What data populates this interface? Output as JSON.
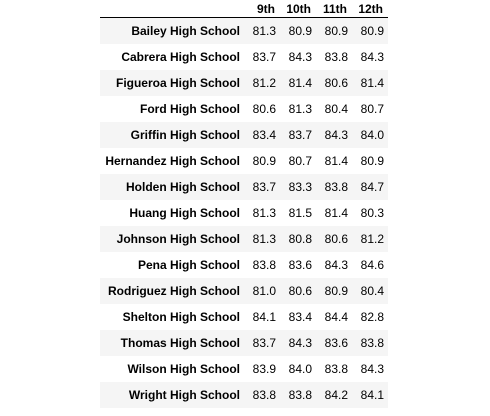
{
  "table": {
    "index_header": "",
    "columns": [
      "9th",
      "10th",
      "11th",
      "12th"
    ],
    "rows": [
      {
        "school": "Bailey High School",
        "values": [
          "81.3",
          "80.9",
          "80.9",
          "80.9"
        ]
      },
      {
        "school": "Cabrera High School",
        "values": [
          "83.7",
          "84.3",
          "83.8",
          "84.3"
        ]
      },
      {
        "school": "Figueroa High School",
        "values": [
          "81.2",
          "81.4",
          "80.6",
          "81.4"
        ]
      },
      {
        "school": "Ford High School",
        "values": [
          "80.6",
          "81.3",
          "80.4",
          "80.7"
        ]
      },
      {
        "school": "Griffin High School",
        "values": [
          "83.4",
          "83.7",
          "84.3",
          "84.0"
        ]
      },
      {
        "school": "Hernandez High School",
        "values": [
          "80.9",
          "80.7",
          "81.4",
          "80.9"
        ]
      },
      {
        "school": "Holden High School",
        "values": [
          "83.7",
          "83.3",
          "83.8",
          "84.7"
        ]
      },
      {
        "school": "Huang High School",
        "values": [
          "81.3",
          "81.5",
          "81.4",
          "80.3"
        ]
      },
      {
        "school": "Johnson High School",
        "values": [
          "81.3",
          "80.8",
          "80.6",
          "81.2"
        ]
      },
      {
        "school": "Pena High School",
        "values": [
          "83.8",
          "83.6",
          "84.3",
          "84.6"
        ]
      },
      {
        "school": "Rodriguez High School",
        "values": [
          "81.0",
          "80.6",
          "80.9",
          "80.4"
        ]
      },
      {
        "school": "Shelton High School",
        "values": [
          "84.1",
          "83.4",
          "84.4",
          "82.8"
        ]
      },
      {
        "school": "Thomas High School",
        "values": [
          "83.7",
          "84.3",
          "83.6",
          "83.8"
        ]
      },
      {
        "school": "Wilson High School",
        "values": [
          "83.9",
          "84.0",
          "83.8",
          "84.3"
        ]
      },
      {
        "school": "Wright High School",
        "values": [
          "83.8",
          "83.8",
          "84.2",
          "84.1"
        ]
      }
    ]
  },
  "colors": {
    "stripe_row": "#f5f5f5",
    "plain_row": "#ffffff",
    "header_rule": "#000000"
  }
}
